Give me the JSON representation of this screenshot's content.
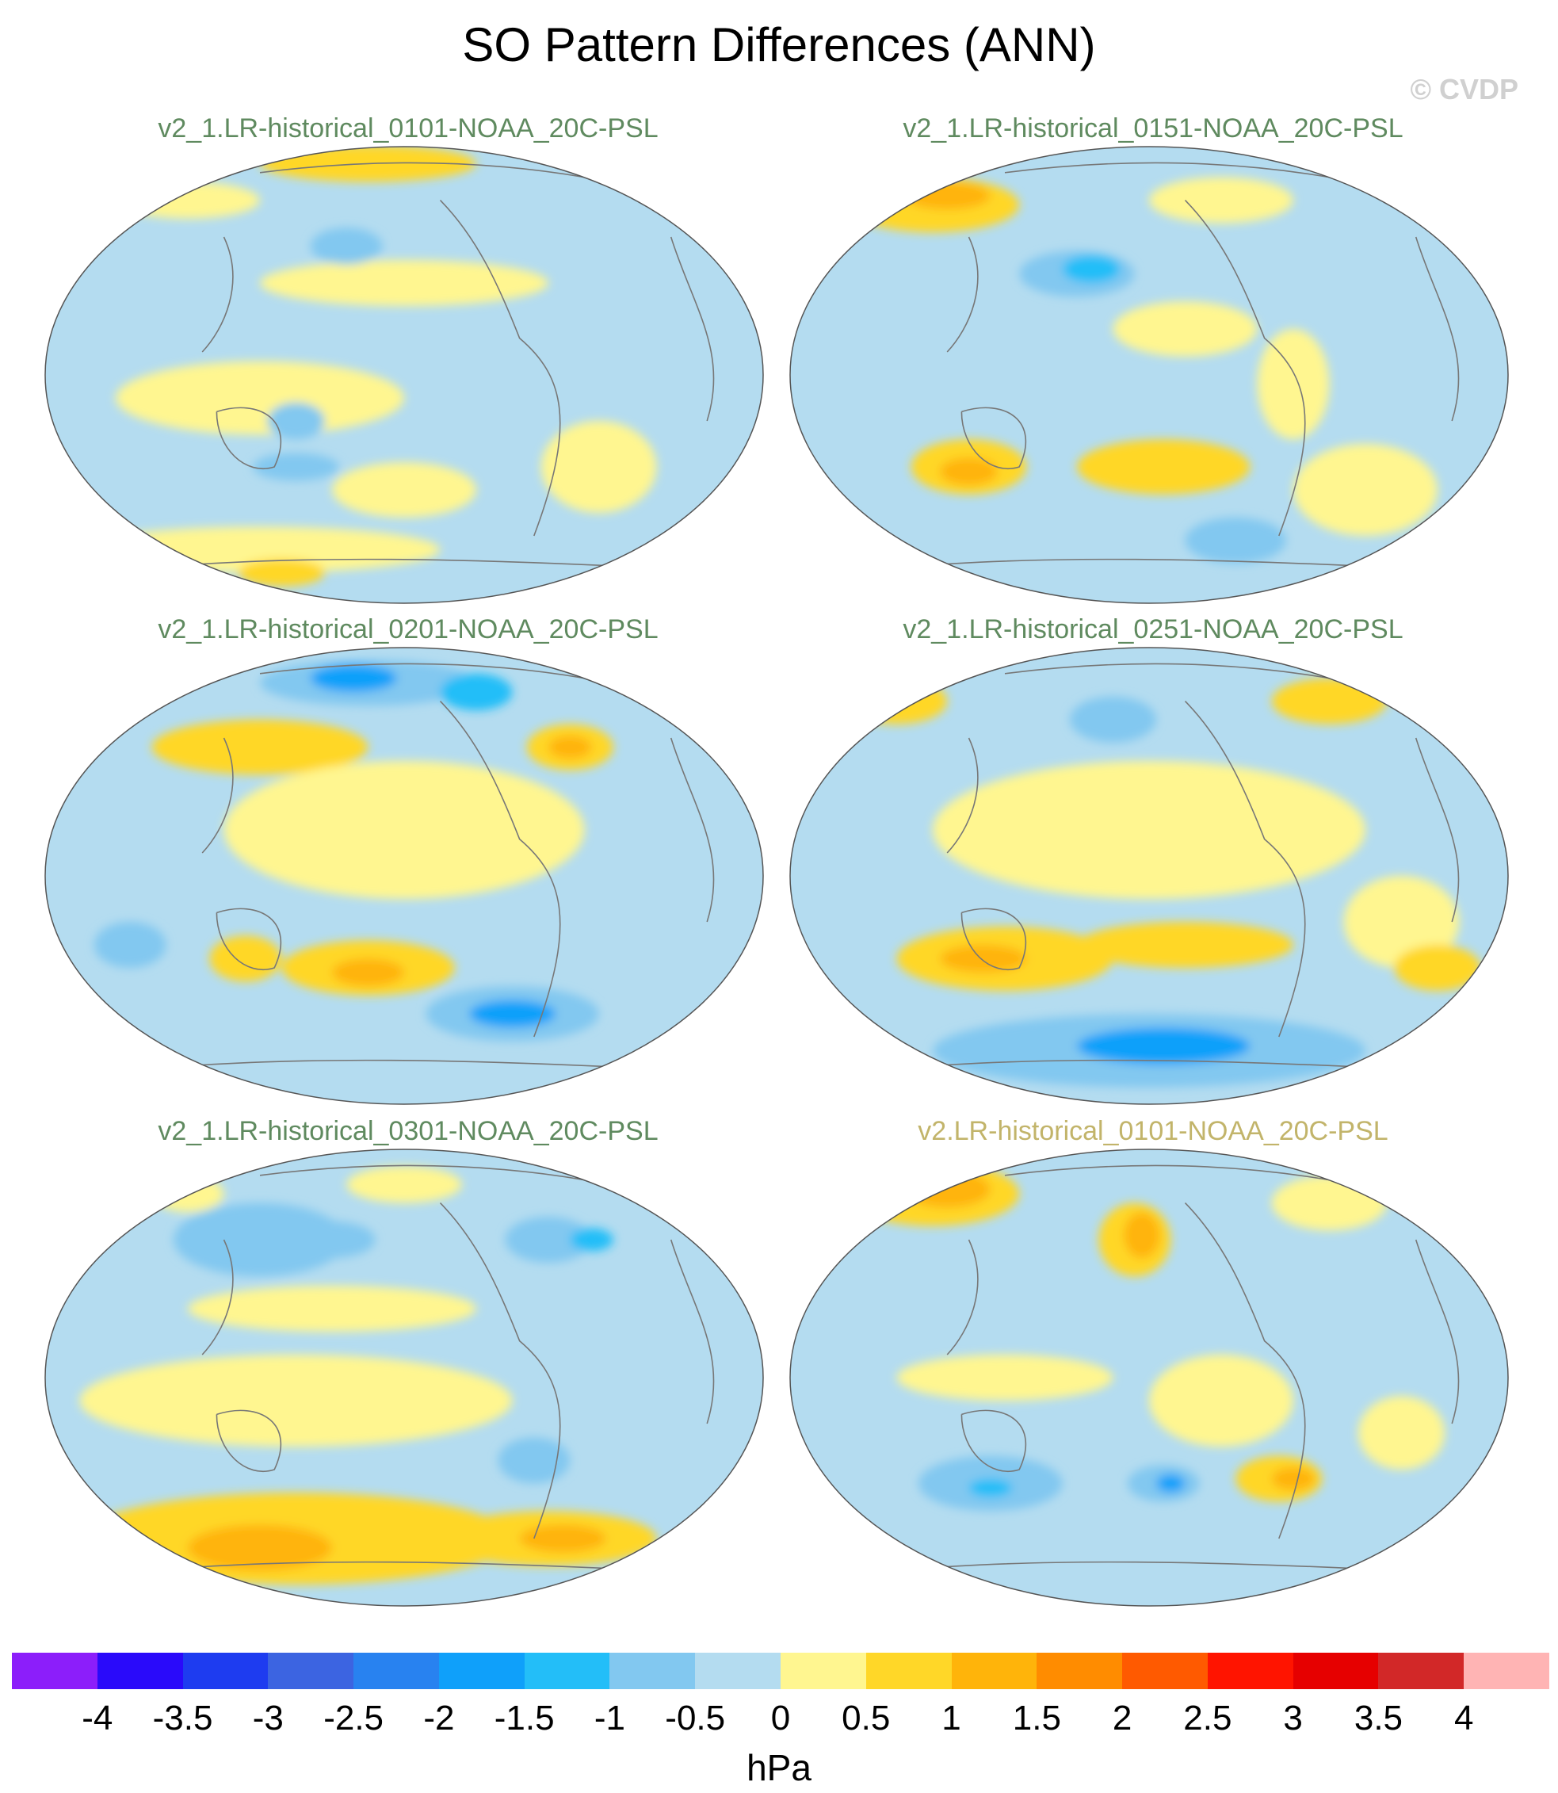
{
  "title": "SO Pattern Differences (ANN)",
  "watermark": "© CVDP",
  "panels": [
    {
      "title": "v2_1.LR-historical_0101-NOAA_20C-PSL",
      "title_color": "#5f8a5f"
    },
    {
      "title": "v2_1.LR-historical_0151-NOAA_20C-PSL",
      "title_color": "#5f8a5f"
    },
    {
      "title": "v2_1.LR-historical_0201-NOAA_20C-PSL",
      "title_color": "#5f8a5f"
    },
    {
      "title": "v2_1.LR-historical_0251-NOAA_20C-PSL",
      "title_color": "#5f8a5f"
    },
    {
      "title": "v2_1.LR-historical_0301-NOAA_20C-PSL",
      "title_color": "#5f8a5f"
    },
    {
      "title": "v2.LR-historical_0101-NOAA_20C-PSL",
      "title_color": "#c2b46a"
    }
  ],
  "colorbar": {
    "colors": [
      "#8c1efa",
      "#2a0afa",
      "#1e3cf0",
      "#3c64e1",
      "#2882f0",
      "#0fa0fa",
      "#23bef8",
      "#82c8f0",
      "#b4dcf0",
      "#fff690",
      "#ffd728",
      "#ffb40a",
      "#ff8c00",
      "#ff5a00",
      "#ff1400",
      "#e60000",
      "#d22828",
      "#ffb4b4"
    ],
    "ticks": [
      "-4",
      "-3.5",
      "-3",
      "-2.5",
      "-2",
      "-1.5",
      "-1",
      "-0.5",
      "0",
      "0.5",
      "1",
      "1.5",
      "2",
      "2.5",
      "3",
      "3.5",
      "4"
    ],
    "units": "hPa"
  }
}
